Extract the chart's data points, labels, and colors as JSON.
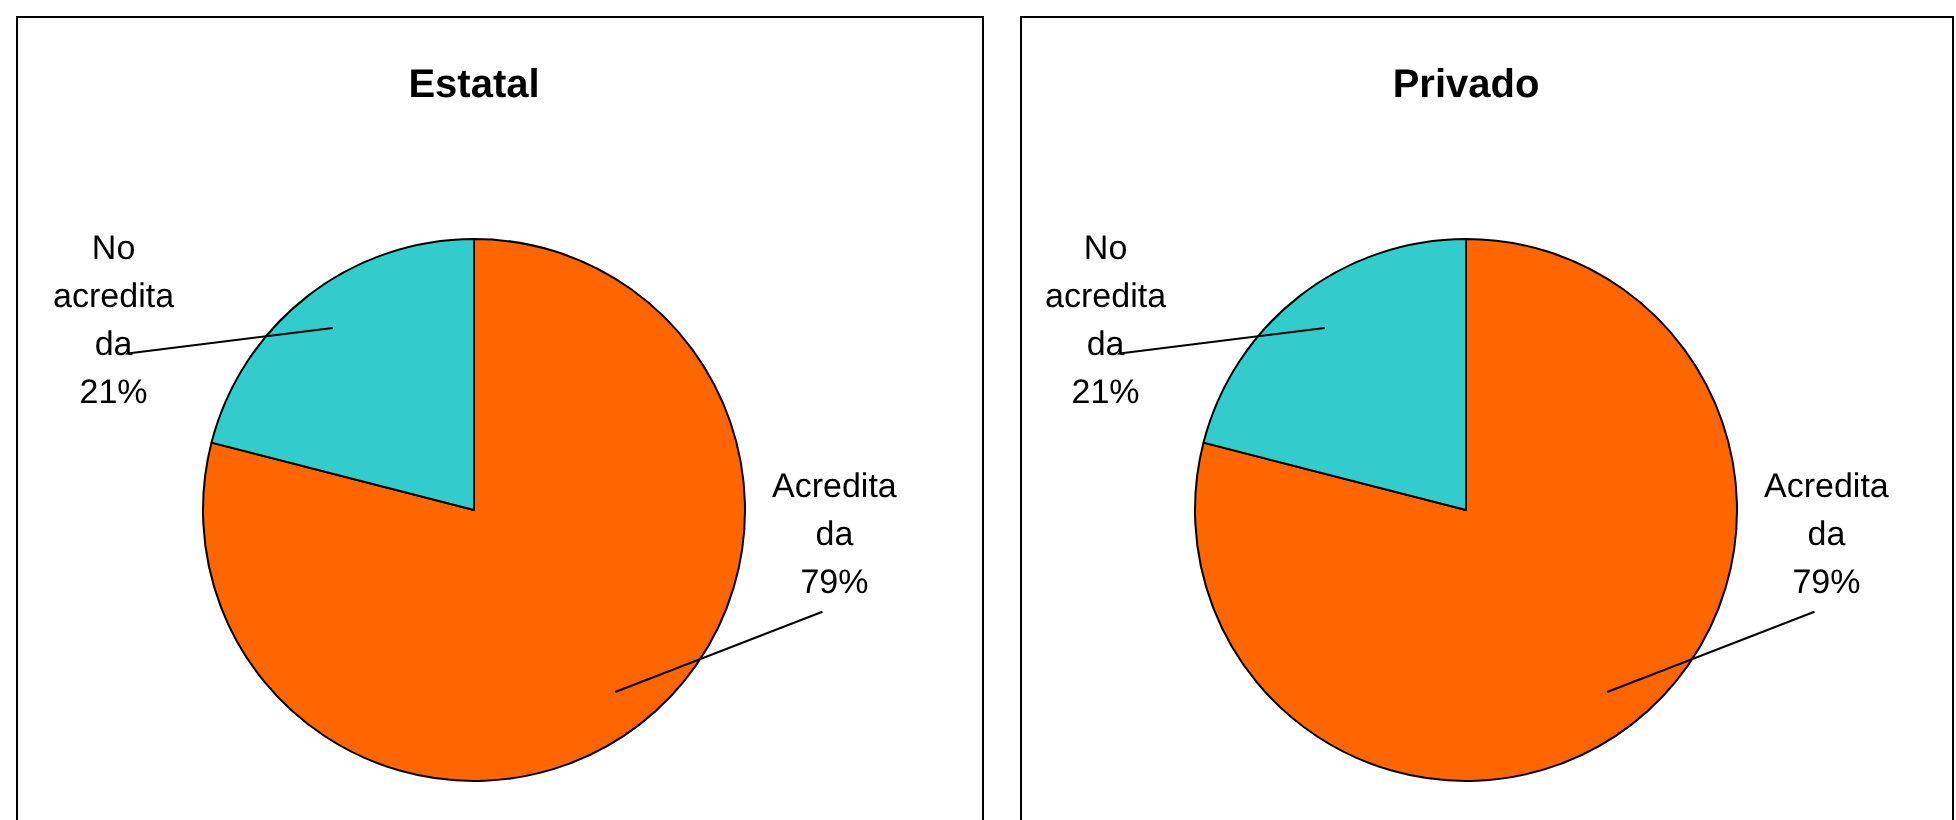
{
  "chart_data": [
    {
      "type": "pie",
      "title": "Estatal",
      "categories": [
        "Acreditada",
        "No acreditada"
      ],
      "values": [
        79,
        21
      ],
      "value_labels": [
        "79%",
        "21%"
      ],
      "colors": [
        "#ff6600",
        "#33cccc"
      ],
      "legend": false
    },
    {
      "type": "pie",
      "title": "Privado",
      "categories": [
        "Acreditada",
        "No acreditada"
      ],
      "values": [
        79,
        21
      ],
      "value_labels": [
        "79%",
        "21%"
      ],
      "colors": [
        "#ff6600",
        "#33cccc"
      ],
      "legend": false
    }
  ]
}
